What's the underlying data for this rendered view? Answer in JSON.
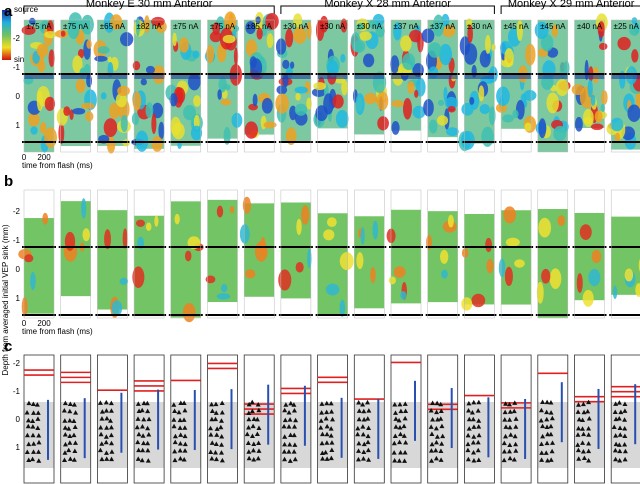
{
  "groups": [
    "Monkey E 30 mm Anterior",
    "Monkey X 28 mm Anterior",
    "Monkey X 29 mm Anterior"
  ],
  "panels": [
    "a",
    "b",
    "c"
  ],
  "currents": [
    "±75 nA",
    "±75 nA",
    "±65 nA",
    "±82 nA",
    "±75 nA",
    "±75 nA",
    "±85 nA",
    "±30 nA",
    "±30 nA",
    "±30 nA",
    "±37 nA",
    "±37 nA",
    "±30 nA",
    "±45 nA",
    "±45 nA",
    "±40 nA",
    "±25 nA"
  ],
  "y_ticks": [
    "-2",
    "-1",
    "0",
    "1"
  ],
  "x_axis": {
    "ticks": [
      "0",
      "200"
    ],
    "label": "time from flash (ms)"
  },
  "y_label": "Depth from averaged initial VEP sink (mm)",
  "colorbar": {
    "top": "source",
    "bottom": "sink"
  }
}
